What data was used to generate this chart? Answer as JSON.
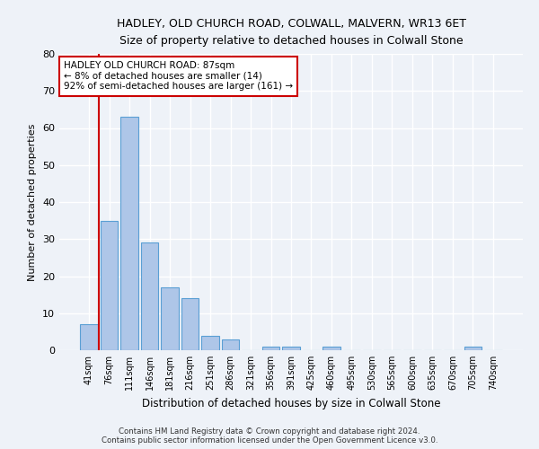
{
  "title": "HADLEY, OLD CHURCH ROAD, COLWALL, MALVERN, WR13 6ET",
  "subtitle": "Size of property relative to detached houses in Colwall Stone",
  "xlabel": "Distribution of detached houses by size in Colwall Stone",
  "ylabel": "Number of detached properties",
  "footer1": "Contains HM Land Registry data © Crown copyright and database right 2024.",
  "footer2": "Contains public sector information licensed under the Open Government Licence v3.0.",
  "annotation_line1": "HADLEY OLD CHURCH ROAD: 87sqm",
  "annotation_line2": "← 8% of detached houses are smaller (14)",
  "annotation_line3": "92% of semi-detached houses are larger (161) →",
  "bar_labels": [
    "41sqm",
    "76sqm",
    "111sqm",
    "146sqm",
    "181sqm",
    "216sqm",
    "251sqm",
    "286sqm",
    "321sqm",
    "356sqm",
    "391sqm",
    "425sqm",
    "460sqm",
    "495sqm",
    "530sqm",
    "565sqm",
    "600sqm",
    "635sqm",
    "670sqm",
    "705sqm",
    "740sqm"
  ],
  "bar_values": [
    7,
    35,
    63,
    29,
    17,
    14,
    4,
    3,
    0,
    1,
    1,
    0,
    1,
    0,
    0,
    0,
    0,
    0,
    0,
    1,
    0
  ],
  "bar_color": "#aec6e8",
  "bar_edge_color": "#5a9fd4",
  "vline_color": "#cc0000",
  "annotation_box_color": "#ffffff",
  "annotation_box_edge_color": "#cc0000",
  "ylim": [
    0,
    80
  ],
  "yticks": [
    0,
    10,
    20,
    30,
    40,
    50,
    60,
    70,
    80
  ],
  "bg_color": "#eef2f8",
  "grid_color": "#ffffff"
}
